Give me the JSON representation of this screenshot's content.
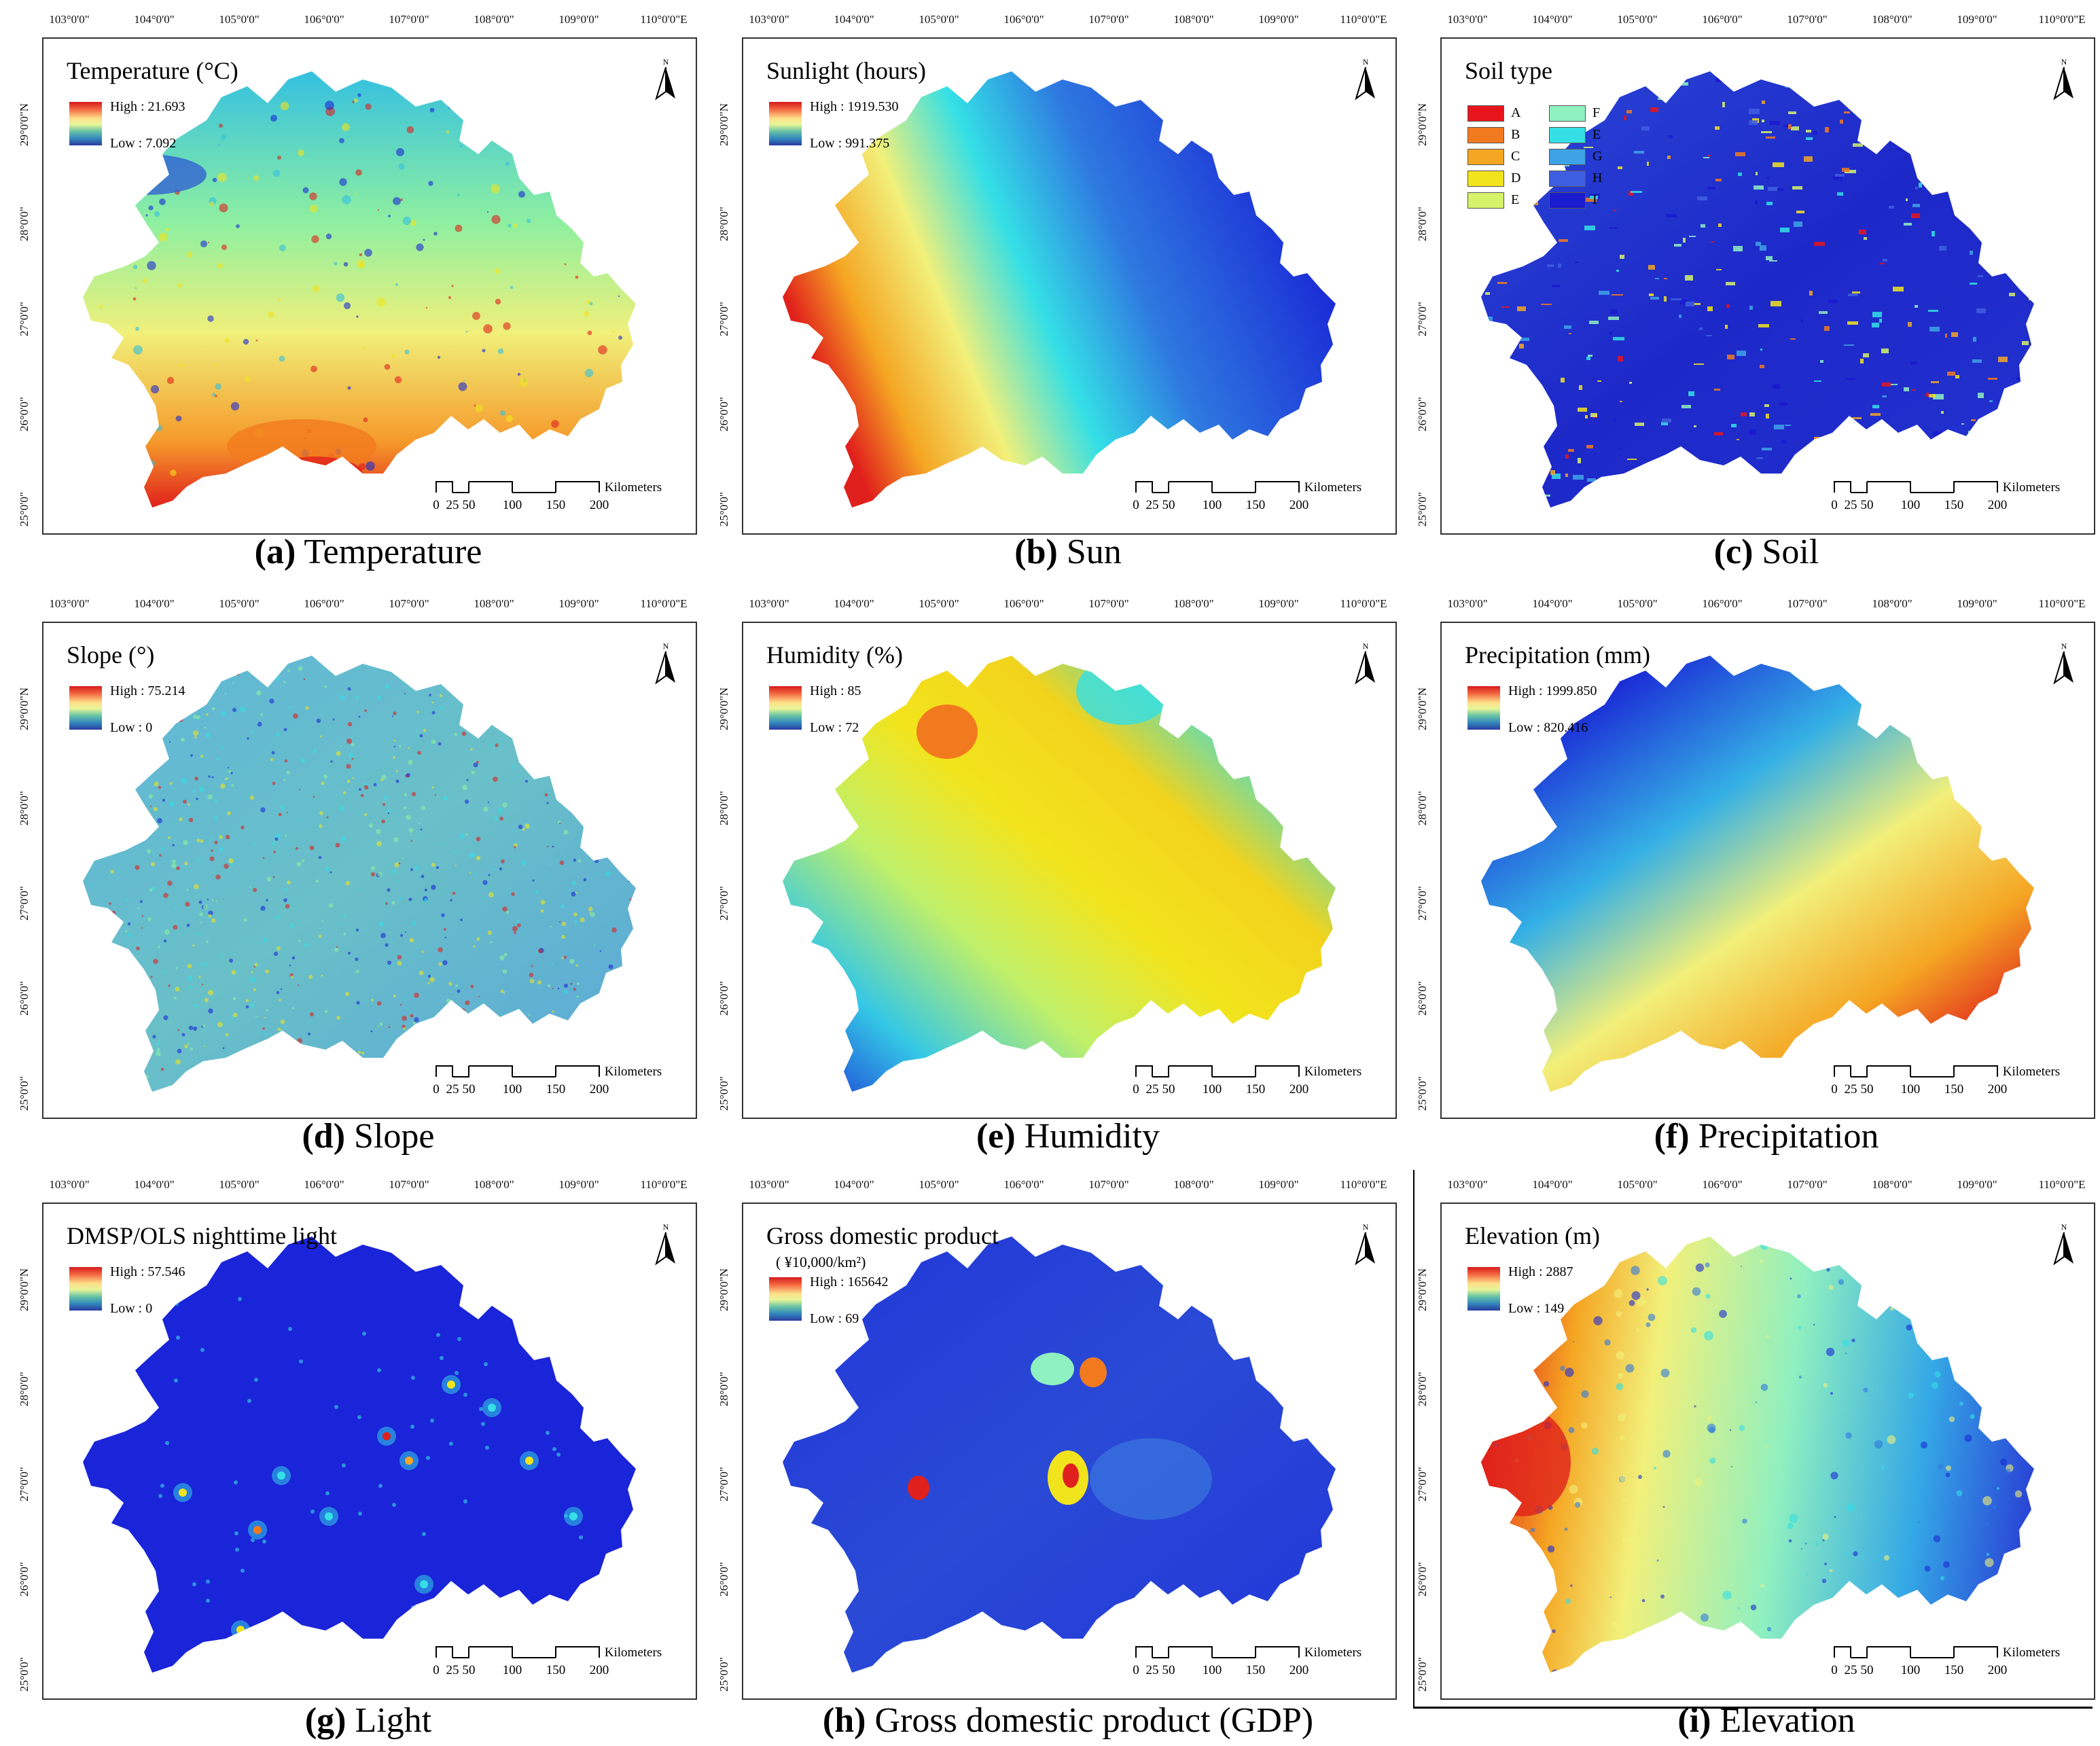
{
  "lon_labels": [
    "103°0'0\"",
    "104°0'0\"",
    "105°0'0\"",
    "106°0'0\"",
    "107°0'0\"",
    "108°0'0\"",
    "109°0'0\"",
    "110°0'0\"E"
  ],
  "lat_labels": [
    "29°0'0\"N",
    "28°0'0\"",
    "27°0'0\"",
    "26°0'0\"",
    "25°0'0\""
  ],
  "scale": {
    "ticks": [
      "0",
      "25",
      "50",
      "100",
      "150",
      "200"
    ],
    "unit": "Kilometers"
  },
  "panels": [
    {
      "id": "a",
      "title": "Temperature (°C)",
      "high": "High : 21.693",
      "low": "Low : 7.092",
      "caption_letter": "(a)",
      "caption_text": " Temperature",
      "palette": "temperature"
    },
    {
      "id": "b",
      "title": "Sunlight (hours)",
      "high": "High : 1919.530",
      "low": "Low : 991.375",
      "caption_letter": "(b)",
      "caption_text": " Sun",
      "palette": "sun"
    },
    {
      "id": "c",
      "title": "Soil type",
      "high": "",
      "low": "",
      "caption_letter": "(c)",
      "caption_text": " Soil",
      "palette": "soil"
    },
    {
      "id": "d",
      "title": "Slope (°)",
      "high": "High : 75.214",
      "low": "Low : 0",
      "caption_letter": "(d)",
      "caption_text": " Slope",
      "palette": "slope"
    },
    {
      "id": "e",
      "title": "Humidity (%)",
      "high": "High : 85",
      "low": "Low : 72",
      "caption_letter": "(e)",
      "caption_text": " Humidity",
      "palette": "humidity"
    },
    {
      "id": "f",
      "title": "Precipitation (mm)",
      "high": "High : 1999.850",
      "low": "Low : 820.416",
      "caption_letter": "(f)",
      "caption_text": " Precipitation",
      "palette": "precip"
    },
    {
      "id": "g",
      "title": "DMSP/OLS nighttime light",
      "high": "High : 57.546",
      "low": "Low : 0",
      "caption_letter": "(g)",
      "caption_text": " Light",
      "palette": "light"
    },
    {
      "id": "h",
      "title": "Gross domestic product",
      "subtitle": "( ¥10,000/km²)",
      "high": "High : 165642",
      "low": "Low : 69",
      "caption_letter": "(h)",
      "caption_text": " Gross domestic product (GDP)",
      "palette": "gdp"
    },
    {
      "id": "i",
      "title": "Elevation (m)",
      "high": "High : 2887",
      "low": "Low : 149",
      "caption_letter": "(i)",
      "caption_text": " Elevation",
      "palette": "elevation"
    }
  ],
  "soil_types": [
    {
      "label": "A",
      "color": "#e8141c"
    },
    {
      "label": "B",
      "color": "#f27a1e"
    },
    {
      "label": "C",
      "color": "#f5a623"
    },
    {
      "label": "D",
      "color": "#f2e41c"
    },
    {
      "label": "E",
      "color": "#d6f26a"
    },
    {
      "label": "F",
      "color": "#8ff0c0"
    },
    {
      "label": "E",
      "color": "#34e0e6"
    },
    {
      "label": "G",
      "color": "#3ea2e6"
    },
    {
      "label": "H",
      "color": "#3e5ee0"
    },
    {
      "label": "I",
      "color": "#1a1acf"
    }
  ],
  "colors": {
    "frame": "#333333"
  }
}
